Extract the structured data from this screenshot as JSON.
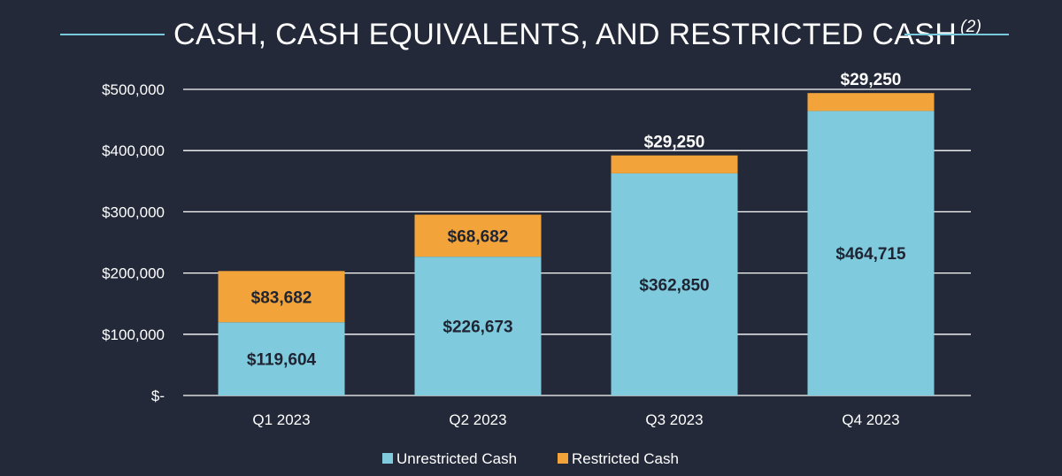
{
  "title": "CASH, CASH EQUIVALENTS, AND RESTRICTED CASH",
  "title_footnote": "(2)",
  "colors": {
    "background": "#232939",
    "unrestricted": "#7fcadc",
    "restricted": "#f2a33a",
    "grid": "#ffffff",
    "label_dark": "#1f2433",
    "label_light": "#ffffff"
  },
  "chart_data": {
    "type": "bar",
    "stacked": true,
    "title": "CASH, CASH EQUIVALENTS, AND RESTRICTED CASH (2)",
    "categories": [
      "Q1 2023",
      "Q2 2023",
      "Q3 2023",
      "Q4 2023"
    ],
    "series": [
      {
        "name": "Unrestricted Cash",
        "values": [
          119604,
          226673,
          362850,
          464715
        ],
        "labels": [
          "$119,604",
          "$226,673",
          "$362,850",
          "$464,715"
        ]
      },
      {
        "name": "Restricted Cash",
        "values": [
          83682,
          68682,
          29250,
          29250
        ],
        "labels": [
          "$83,682",
          "$68,682",
          "$29,250",
          "$29,250"
        ]
      }
    ],
    "ylim": [
      0,
      500000
    ],
    "yticks": [
      {
        "value": 0,
        "label": "$-"
      },
      {
        "value": 100000,
        "label": "$100,000"
      },
      {
        "value": 200000,
        "label": "$200,000"
      },
      {
        "value": 300000,
        "label": "$300,000"
      },
      {
        "value": 400000,
        "label": "$400,000"
      },
      {
        "value": 500000,
        "label": "$500,000"
      }
    ],
    "xlabel": "",
    "ylabel": "",
    "grid": true,
    "legend_position": "bottom-center"
  }
}
